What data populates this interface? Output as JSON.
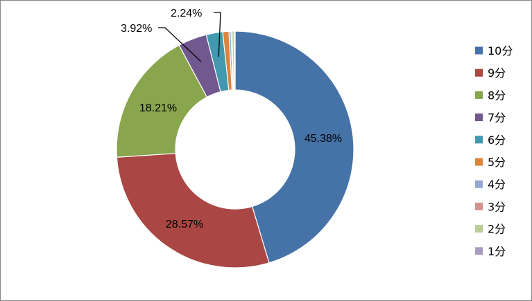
{
  "chart_data": {
    "type": "pie",
    "style": "donut",
    "title": "",
    "legend_position": "right",
    "categories": [
      "10分",
      "9分",
      "8分",
      "7分",
      "6分",
      "5分",
      "4分",
      "3分",
      "2分",
      "1分"
    ],
    "values": [
      45.38,
      28.57,
      18.21,
      3.92,
      2.24,
      0.84,
      0.28,
      0.14,
      0.28,
      0.14
    ],
    "data_labels": [
      "45.38%",
      "28.57%",
      "18.21%",
      "3.92%",
      "2.24%",
      "",
      "",
      "",
      "",
      ""
    ],
    "colors": [
      "#4572A7",
      "#AA4643",
      "#89A54E",
      "#71588F",
      "#4198AF",
      "#DB843D",
      "#93A9CF",
      "#D19392",
      "#B9CD96",
      "#A99BBD"
    ]
  }
}
